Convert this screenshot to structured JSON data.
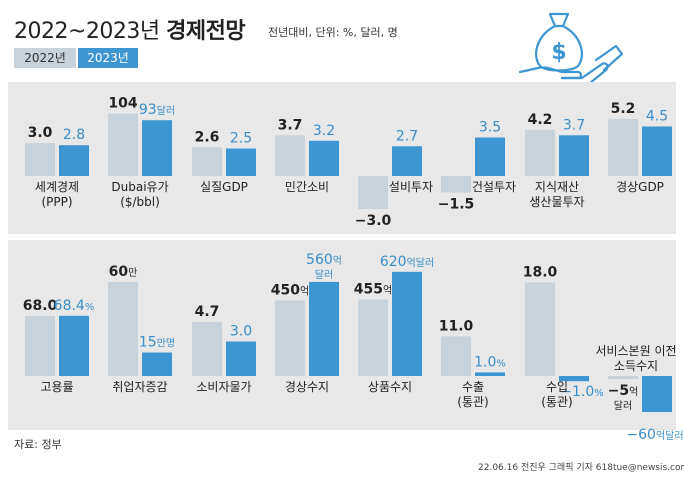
{
  "title": "2022~2023년",
  "title_strong": "경제전망",
  "subtitle": "전년대비, 단위: %, 달러, 명",
  "legend": [
    {
      "name": "2022년",
      "color": "#c8d2da",
      "text_color": "#333333"
    },
    {
      "name": "2023년",
      "color": "#3d95d2",
      "text_color": "#ffffff"
    }
  ],
  "source": "자료: 정부",
  "credit": "22.06.16 전진우 그래픽 기자 618tue@newsis.com",
  "colors": {
    "bar_2022": "#c8d2da",
    "bar_2023": "#3d95d2",
    "label_2023": "#3a8ec9",
    "panel": "#e8e8e8"
  },
  "chart_data": {
    "type": "bar",
    "series_names": [
      "2022년",
      "2023년"
    ],
    "categories": [
      {
        "label": [
          "세계경제",
          "(PPP)"
        ],
        "v2022": 3.0,
        "v2023": 2.8,
        "t2022": "3.0",
        "t2023": "2.8"
      },
      {
        "label": [
          "Dubai유가",
          "($/bbl)"
        ],
        "v2022": 104,
        "v2023": 93,
        "t2022": "104",
        "t2023": "93",
        "u2023": "달러"
      },
      {
        "label": [
          "실질GDP"
        ],
        "v2022": 2.6,
        "v2023": 2.5,
        "t2022": "2.6",
        "t2023": "2.5"
      },
      {
        "label": [
          "민간소비"
        ],
        "v2022": 3.7,
        "v2023": 3.2,
        "t2022": "3.7",
        "t2023": "3.2"
      },
      {
        "label": [
          "설비투자"
        ],
        "v2022": -3.0,
        "v2023": 2.7,
        "t2022": "−3.0",
        "t2023": "2.7"
      },
      {
        "label": [
          "건설투자"
        ],
        "v2022": -1.5,
        "v2023": 3.5,
        "t2022": "−1.5",
        "t2023": "3.5"
      },
      {
        "label": [
          "지식재산",
          "생산물투자"
        ],
        "v2022": 4.2,
        "v2023": 3.7,
        "t2022": "4.2",
        "t2023": "3.7"
      },
      {
        "label": [
          "경상GDP"
        ],
        "v2022": 5.2,
        "v2023": 4.5,
        "t2022": "5.2",
        "t2023": "4.5"
      },
      {
        "label": [
          "고용률"
        ],
        "v2022": 68.0,
        "v2023": 68.4,
        "t2022": "68.0",
        "t2023": "68.4",
        "u2023": "%"
      },
      {
        "label": [
          "취업자증감"
        ],
        "v2022": 600000,
        "v2023": 150000,
        "t2022": "60",
        "u2022": "만",
        "t2023": "15",
        "u2023": "만명"
      },
      {
        "label": [
          "소비자물가"
        ],
        "v2022": 4.7,
        "v2023": 3.0,
        "t2022": "4.7",
        "t2023": "3.0"
      },
      {
        "label": [
          "경상수지"
        ],
        "v2022": 450,
        "v2023": 560,
        "t2022": "450",
        "u2022": "억",
        "t2023": "560",
        "u2023": "억",
        "u2023b": "달러"
      },
      {
        "label": [
          "상품수지"
        ],
        "v2022": 455,
        "v2023": 620,
        "t2022": "455",
        "u2022": "억",
        "t2023": "620",
        "u2023": "억달러"
      },
      {
        "label": [
          "수출",
          "(통관)"
        ],
        "v2022": 11.0,
        "v2023": 1.0,
        "t2022": "11.0",
        "t2023": "1.0",
        "u2023": "%"
      },
      {
        "label": [
          "수입",
          "(통관)"
        ],
        "v2022": 18.0,
        "v2023": -1.0,
        "t2022": "18.0",
        "t2023": "−1.0",
        "u2023": "%"
      },
      {
        "label": [
          "서비스본원 이전",
          "소득수지"
        ],
        "v2022": -5,
        "v2023": -60,
        "t2022": "−5",
        "u2022": "억",
        "u2022b": "달러",
        "t2023": "−60",
        "u2023": "억달러"
      }
    ]
  }
}
